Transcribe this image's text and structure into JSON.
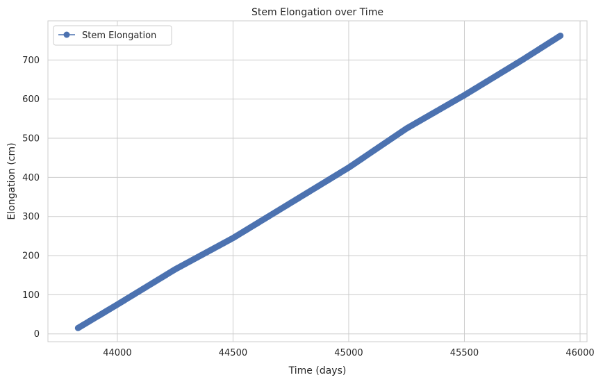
{
  "chart_data": {
    "type": "line",
    "title": "Stem Elongation over Time",
    "xlabel": "Time (days)",
    "ylabel": "Elongation (cm)",
    "xlim": [
      43700,
      46030
    ],
    "ylim": [
      -20,
      800
    ],
    "x_ticks": [
      44000,
      44500,
      45000,
      45500,
      46000
    ],
    "y_ticks": [
      0,
      100,
      200,
      300,
      400,
      500,
      600,
      700
    ],
    "grid": true,
    "legend_position": "top-left",
    "series": [
      {
        "name": "Stem Elongation",
        "color": "#4c72b0",
        "marker": "circle",
        "x_start": 43830,
        "x_end": 45915,
        "x_step": 5,
        "x": [
          43830,
          44000,
          44250,
          44500,
          44750,
          45000,
          45250,
          45500,
          45750,
          45915
        ],
        "y": [
          15,
          75,
          165,
          245,
          335,
          425,
          525,
          610,
          700,
          762
        ]
      }
    ]
  }
}
